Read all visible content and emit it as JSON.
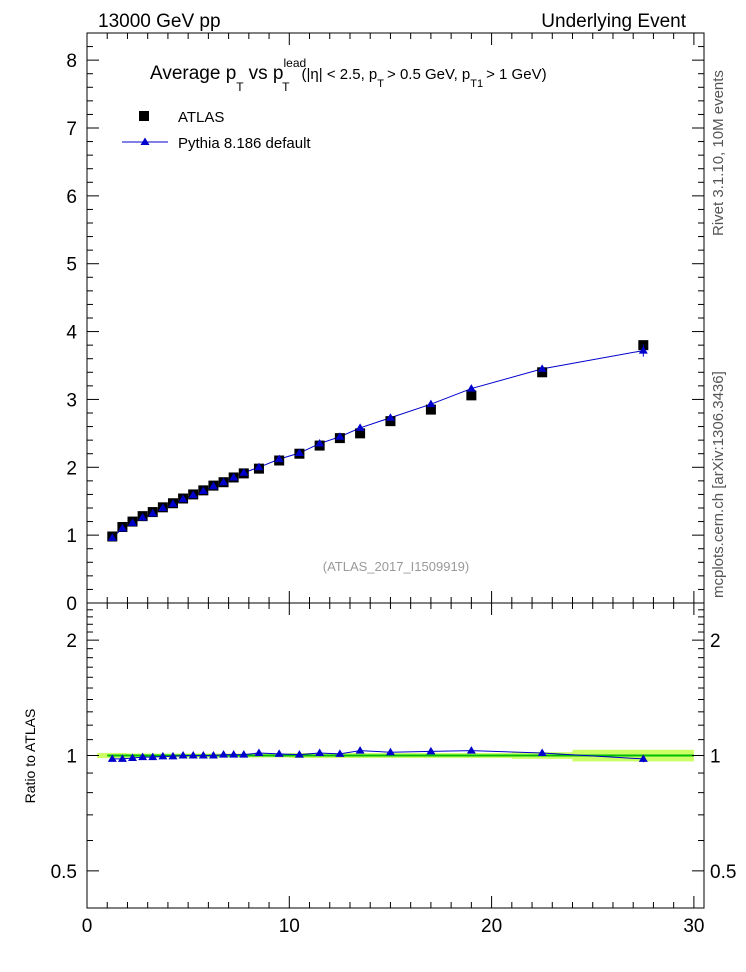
{
  "header": {
    "left": "13000 GeV pp",
    "right": "Underlying Event"
  },
  "side_labels": {
    "rivet": "Rivet 3.1.10, 10M events",
    "mcplots": "mcplots.cern.ch [arXiv:1306.3436]"
  },
  "chart_data": [
    {
      "type": "scatter",
      "panel": "main",
      "title": "Average p_T vs p_T^lead (|η| < 2.5, p_T > 0.5 GeV, p_T1 > 1 GeV)",
      "title_parts": {
        "avg": "Average p",
        "sub_t": "T",
        "vs": "vs p",
        "sup_lead": "lead",
        "cut1": "(|η| < 2.5, p",
        "cut2": "> 0.5 GeV, p",
        "sub_t1": "T1",
        "cut3": "> 1 GeV)"
      },
      "watermark": "(ATLAS_2017_I1509919)",
      "xlim": [
        0,
        30.5
      ],
      "ylim": [
        0,
        8.4
      ],
      "xticks": [
        0,
        10,
        20,
        30
      ],
      "yticks": [
        0,
        1,
        2,
        3,
        4,
        5,
        6,
        7,
        8
      ],
      "legend_position": "top-left",
      "x": [
        1.25,
        1.75,
        2.25,
        2.75,
        3.25,
        3.75,
        4.25,
        4.75,
        5.25,
        5.75,
        6.25,
        6.75,
        7.25,
        7.75,
        8.5,
        9.5,
        10.5,
        11.5,
        12.5,
        13.5,
        15.0,
        17.0,
        19.0,
        22.5,
        27.5
      ],
      "series": [
        {
          "name": "ATLAS",
          "marker": "square",
          "color": "#000000",
          "values": [
            0.98,
            1.12,
            1.2,
            1.28,
            1.34,
            1.41,
            1.47,
            1.54,
            1.6,
            1.66,
            1.73,
            1.78,
            1.85,
            1.91,
            1.98,
            2.1,
            2.2,
            2.32,
            2.43,
            2.5,
            2.68,
            2.85,
            3.06,
            3.4,
            3.8
          ]
        },
        {
          "name": "Pythia 8.186 default",
          "marker": "triangle",
          "color": "#0000cc",
          "values": [
            0.96,
            1.1,
            1.18,
            1.26,
            1.32,
            1.4,
            1.46,
            1.53,
            1.59,
            1.65,
            1.72,
            1.78,
            1.85,
            1.92,
            2.0,
            2.12,
            2.21,
            2.35,
            2.45,
            2.58,
            2.73,
            2.93,
            3.16,
            3.45,
            3.72
          ]
        }
      ]
    },
    {
      "type": "scatter",
      "panel": "ratio",
      "ylabel": "Ratio to ATLAS",
      "xlim": [
        0,
        30.5
      ],
      "ylim": [
        0.4,
        2.5
      ],
      "yticks": [
        0.5,
        1,
        2
      ],
      "ytick_labels": [
        "0.5",
        "1",
        "2"
      ],
      "xticks": [
        0,
        10,
        20,
        30
      ],
      "xtick_labels": [
        "0",
        "10",
        "20",
        "30"
      ],
      "x": [
        1.25,
        1.75,
        2.25,
        2.75,
        3.25,
        3.75,
        4.25,
        4.75,
        5.25,
        5.75,
        6.25,
        6.75,
        7.25,
        7.75,
        8.5,
        9.5,
        10.5,
        11.5,
        12.5,
        13.5,
        15.0,
        17.0,
        19.0,
        22.5,
        27.5
      ],
      "series": [
        {
          "name": "Pythia 8.186 default",
          "marker": "triangle",
          "color": "#0000cc",
          "values": [
            0.98,
            0.98,
            0.985,
            0.99,
            0.99,
            0.995,
            0.995,
            1.0,
            1.0,
            1.0,
            1.0,
            1.005,
            1.005,
            1.005,
            1.015,
            1.01,
            1.005,
            1.015,
            1.01,
            1.03,
            1.02,
            1.025,
            1.03,
            1.015,
            0.98
          ]
        }
      ],
      "reference_band": {
        "fill": "#ccff66",
        "line": "#00bb00"
      }
    }
  ]
}
